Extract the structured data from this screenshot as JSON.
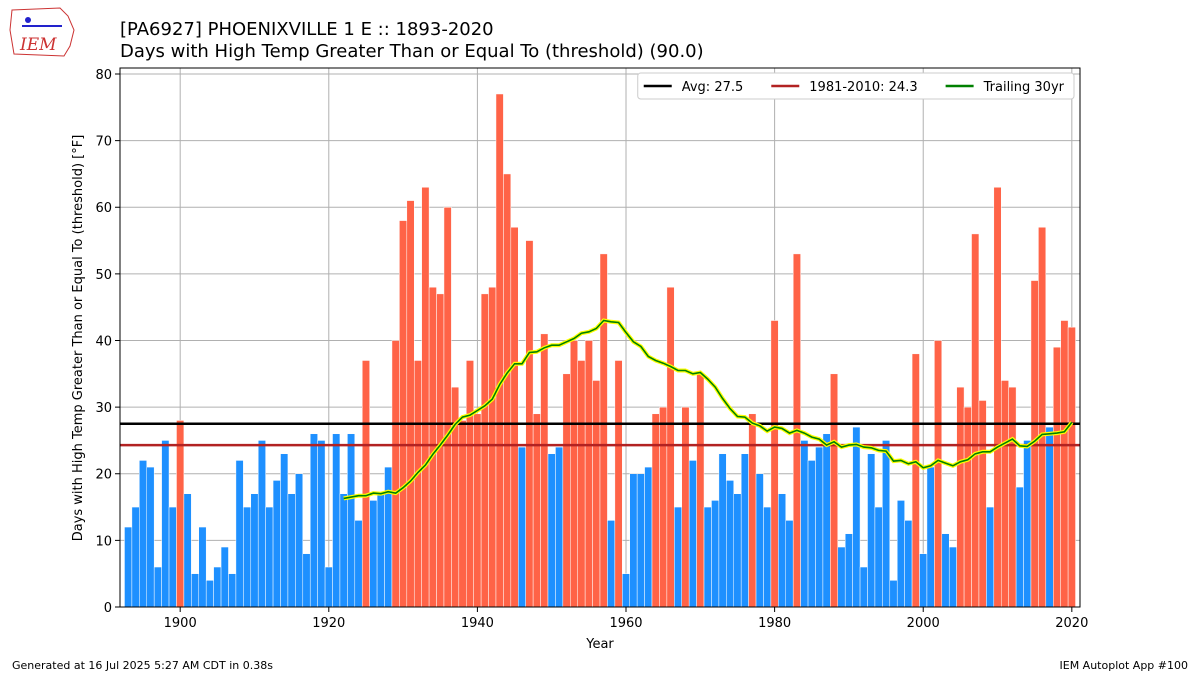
{
  "logo": "IEM",
  "footer_left": "Generated at 16 Jul 2025 5:27 AM CDT in 0.38s",
  "footer_right": "IEM Autoplot App #100",
  "chart_data": {
    "type": "bar",
    "title": "[PA6927] PHOENIXVILLE 1 E :: 1893-2020",
    "subtitle": "Days with High Temp Greater Than or Equal To (threshold) (90.0)",
    "x_label": "Year",
    "y_label": "Days with High Temp Greater Than or Equal To (threshold) [°F]",
    "xlim": [
      1891.9,
      2021.1
    ],
    "ylim": [
      0,
      80.9
    ],
    "xticks": [
      1900,
      1920,
      1940,
      1960,
      1980,
      2000,
      2020
    ],
    "yticks": [
      0,
      10,
      20,
      30,
      40,
      50,
      60,
      70,
      80
    ],
    "grid": true,
    "legend_position": "upper right",
    "above_color": "#ff6347",
    "below_color": "#1e90ff",
    "x": [
      1893,
      1894,
      1895,
      1896,
      1897,
      1898,
      1899,
      1900,
      1901,
      1902,
      1903,
      1904,
      1905,
      1906,
      1907,
      1908,
      1909,
      1910,
      1911,
      1912,
      1913,
      1914,
      1915,
      1916,
      1917,
      1918,
      1919,
      1920,
      1921,
      1922,
      1923,
      1924,
      1925,
      1926,
      1927,
      1928,
      1929,
      1930,
      1931,
      1932,
      1933,
      1934,
      1935,
      1936,
      1937,
      1938,
      1939,
      1940,
      1941,
      1942,
      1943,
      1944,
      1945,
      1946,
      1947,
      1948,
      1949,
      1950,
      1951,
      1952,
      1953,
      1954,
      1955,
      1956,
      1957,
      1958,
      1959,
      1960,
      1961,
      1962,
      1963,
      1964,
      1965,
      1966,
      1967,
      1968,
      1969,
      1970,
      1971,
      1972,
      1973,
      1974,
      1975,
      1976,
      1977,
      1978,
      1979,
      1980,
      1981,
      1982,
      1983,
      1984,
      1985,
      1986,
      1987,
      1988,
      1989,
      1990,
      1991,
      1992,
      1993,
      1994,
      1995,
      1996,
      1997,
      1998,
      1999,
      2000,
      2001,
      2002,
      2003,
      2004,
      2005,
      2006,
      2007,
      2008,
      2009,
      2010,
      2011,
      2012,
      2013,
      2014,
      2015,
      2016,
      2017,
      2018,
      2019,
      2020
    ],
    "values": [
      12,
      15,
      22,
      21,
      6,
      25,
      15,
      28,
      17,
      5,
      12,
      4,
      6,
      9,
      5,
      22,
      15,
      17,
      25,
      15,
      19,
      23,
      17,
      20,
      8,
      26,
      25,
      6,
      26,
      17,
      26,
      13,
      37,
      16,
      17,
      21,
      40,
      58,
      61,
      37,
      63,
      48,
      47,
      60,
      33,
      28,
      37,
      29,
      47,
      48,
      77,
      65,
      57,
      24,
      55,
      29,
      41,
      23,
      24,
      35,
      40,
      37,
      40,
      34,
      53,
      13,
      37,
      5,
      20,
      20,
      21,
      29,
      30,
      48,
      15,
      30,
      22,
      35,
      15,
      16,
      23,
      19,
      17,
      23,
      29,
      20,
      15,
      43,
      17,
      13,
      53,
      25,
      22,
      24,
      26,
      35,
      9,
      11,
      27,
      6,
      23,
      15,
      25,
      4,
      16,
      13,
      38,
      8,
      21,
      40,
      11,
      9,
      33,
      30,
      56,
      31,
      15,
      63,
      34,
      33,
      18,
      25,
      49,
      57,
      27,
      39,
      43,
      42
    ],
    "reference_lines": [
      {
        "label": "Avg: 27.5",
        "value": 27.5,
        "color": "#000000"
      },
      {
        "label": "1981-2010: 24.3",
        "value": 24.3,
        "color": "#b22222"
      }
    ],
    "series": [
      {
        "name": "Trailing 30yr",
        "color": "#008000",
        "outline": "#ffff00",
        "values": [
          null,
          null,
          null,
          null,
          null,
          null,
          null,
          null,
          null,
          null,
          null,
          null,
          null,
          null,
          null,
          null,
          null,
          null,
          null,
          null,
          null,
          null,
          null,
          null,
          null,
          null,
          null,
          null,
          null,
          16.3,
          16.5,
          16.7,
          16.7,
          17.1,
          17.0,
          17.3,
          17.1,
          17.9,
          18.9,
          20.2,
          21.3,
          22.9,
          24.3,
          25.8,
          27.4,
          28.5,
          28.8,
          29.5,
          30.2,
          31.2,
          33.4,
          35.1,
          36.5,
          36.5,
          38.2,
          38.3,
          38.9,
          39.3,
          39.3,
          39.8,
          40.3,
          41.1,
          41.3,
          41.8,
          43.0,
          42.8,
          42.7,
          41.2,
          39.8,
          39.1,
          37.6,
          37.0,
          36.6,
          36.1,
          35.5,
          35.5,
          35.0,
          35.2,
          34.2,
          33.0,
          31.3,
          29.8,
          28.6,
          28.5,
          27.6,
          27.2,
          26.4,
          27.0,
          26.8,
          26.1,
          26.5,
          26.1,
          25.5,
          25.2,
          24.3,
          24.8,
          24.0,
          24.3,
          24.4,
          24.0,
          23.9,
          23.5,
          23.4,
          21.9,
          22.0,
          21.5,
          21.8,
          20.9,
          21.2,
          22.0,
          21.6,
          21.2,
          21.8,
          22.1,
          23.0,
          23.3,
          23.3,
          24.0,
          24.6,
          25.2,
          24.2,
          24.1,
          24.9,
          25.9,
          26.0,
          26.1,
          26.3,
          27.7
        ]
      }
    ]
  }
}
